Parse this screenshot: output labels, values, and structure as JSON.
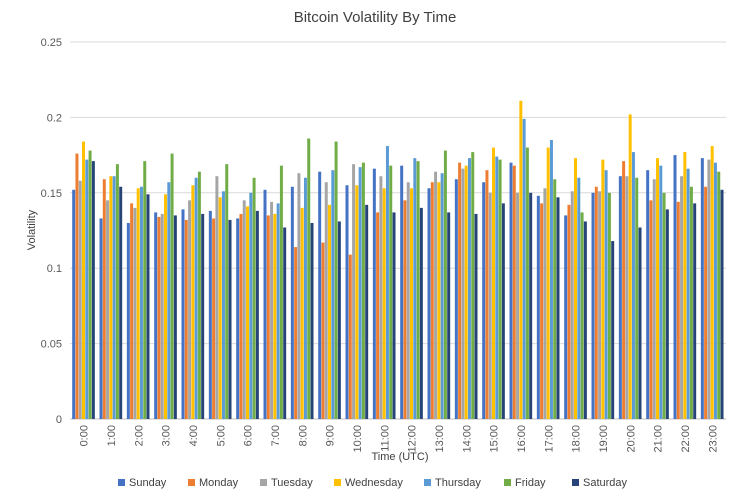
{
  "chart_data": {
    "type": "bar",
    "title": "Bitcoin Volatility By Time",
    "xlabel": "Time (UTC)",
    "ylabel": "Volatility",
    "ylim": [
      0,
      0.25
    ],
    "yticks": [
      "0",
      "0.05",
      "0.1",
      "0.15",
      "0.2",
      "0.25"
    ],
    "ytick_values": [
      0,
      0.05,
      0.1,
      0.15,
      0.2,
      0.25
    ],
    "grid": true,
    "legend_position": "bottom",
    "categories": [
      "0:00",
      "1:00",
      "2:00",
      "3:00",
      "4:00",
      "5:00",
      "6:00",
      "7:00",
      "8:00",
      "9:00",
      "10:00",
      "11:00",
      "12:00",
      "13:00",
      "14:00",
      "15:00",
      "16:00",
      "17:00",
      "18:00",
      "19:00",
      "20:00",
      "21:00",
      "22:00",
      "23:00"
    ],
    "series": [
      {
        "name": "Sunday",
        "color": "#4472C4",
        "values": [
          0.152,
          0.133,
          0.13,
          0.137,
          0.139,
          0.138,
          0.133,
          0.152,
          0.154,
          0.164,
          0.155,
          0.166,
          0.168,
          0.153,
          0.159,
          0.157,
          0.17,
          0.148,
          0.135,
          0.15,
          0.161,
          0.165,
          0.175,
          0.173
        ]
      },
      {
        "name": "Monday",
        "color": "#ED7D31",
        "values": [
          0.176,
          0.159,
          0.143,
          0.134,
          0.132,
          0.133,
          0.136,
          0.135,
          0.114,
          0.117,
          0.109,
          0.137,
          0.145,
          0.157,
          0.17,
          0.165,
          0.168,
          0.143,
          0.142,
          0.154,
          0.171,
          0.145,
          0.144,
          0.154
        ]
      },
      {
        "name": "Tuesday",
        "color": "#A5A5A5",
        "values": [
          0.158,
          0.145,
          0.14,
          0.136,
          0.145,
          0.161,
          0.145,
          0.144,
          0.163,
          0.157,
          0.169,
          0.161,
          0.157,
          0.164,
          0.166,
          0.15,
          0.15,
          0.153,
          0.151,
          0.151,
          0.161,
          0.159,
          0.161,
          0.172
        ]
      },
      {
        "name": "Wednesday",
        "color": "#FFC000",
        "values": [
          0.184,
          0.161,
          0.153,
          0.149,
          0.155,
          0.147,
          0.141,
          0.136,
          0.14,
          0.142,
          0.155,
          0.153,
          0.153,
          0.157,
          0.168,
          0.18,
          0.211,
          0.18,
          0.173,
          0.172,
          0.202,
          0.173,
          0.177,
          0.181
        ]
      },
      {
        "name": "Thursday",
        "color": "#5B9BD5",
        "values": [
          0.172,
          0.161,
          0.154,
          0.157,
          0.16,
          0.151,
          0.15,
          0.143,
          0.16,
          0.165,
          0.167,
          0.181,
          0.173,
          0.163,
          0.173,
          0.174,
          0.199,
          0.185,
          0.16,
          0.165,
          0.177,
          0.168,
          0.166,
          0.17
        ]
      },
      {
        "name": "Friday",
        "color": "#70AD47",
        "values": [
          0.178,
          0.169,
          0.171,
          0.176,
          0.164,
          0.169,
          0.16,
          0.168,
          0.186,
          0.184,
          0.17,
          0.168,
          0.171,
          0.178,
          0.177,
          0.172,
          0.18,
          0.159,
          0.137,
          0.15,
          0.16,
          0.15,
          0.154,
          0.164
        ]
      },
      {
        "name": "Saturday",
        "color": "#264478",
        "values": [
          0.171,
          0.154,
          0.149,
          0.135,
          0.136,
          0.132,
          0.138,
          0.127,
          0.13,
          0.131,
          0.142,
          0.137,
          0.14,
          0.137,
          0.136,
          0.143,
          0.15,
          0.147,
          0.131,
          0.118,
          0.127,
          0.139,
          0.143,
          0.152
        ]
      }
    ]
  }
}
